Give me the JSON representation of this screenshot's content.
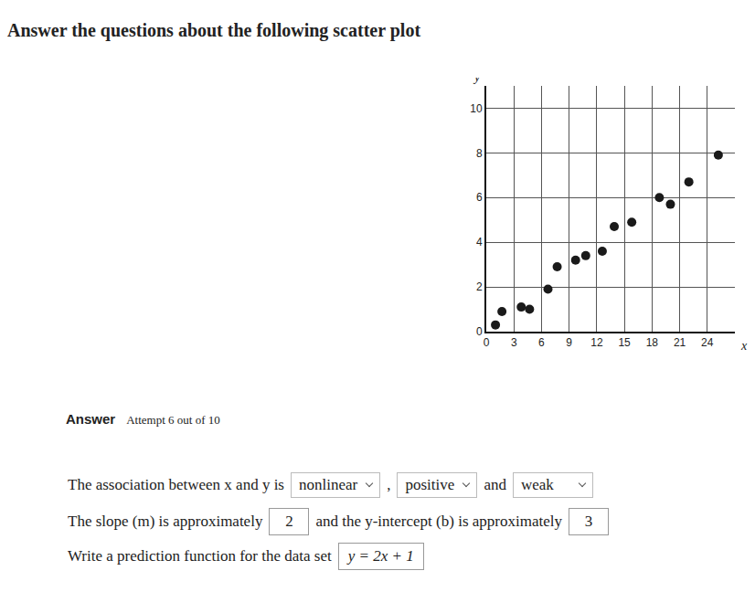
{
  "header": {
    "title": "Answer the questions about the following scatter plot"
  },
  "chart_data": {
    "type": "scatter",
    "xlabel": "x",
    "ylabel": "y",
    "x": [
      1,
      1.7,
      3.8,
      4.7,
      6.7,
      7.7,
      9.7,
      10.8,
      12.6,
      13.9,
      15.8,
      18.8,
      20.0,
      22.0,
      25.2
    ],
    "values": [
      0.3,
      0.9,
      1.1,
      1.0,
      1.9,
      2.9,
      3.2,
      3.4,
      3.6,
      4.7,
      4.9,
      6.0,
      5.7,
      6.7,
      7.9
    ],
    "color": "#1a1a1a",
    "marker": "circle",
    "xlim": [
      0,
      27
    ],
    "xticks": [
      0,
      3,
      6,
      9,
      12,
      15,
      18,
      21,
      24
    ],
    "ylim": [
      0,
      11
    ],
    "yticks": [
      0,
      2,
      4,
      6,
      8,
      10
    ],
    "grid": true
  },
  "answer": {
    "label": "Answer",
    "attempt": "Attempt 6 out of 10",
    "lines": [
      [
        {
          "text": "The association between x and y is"
        },
        {
          "select": "nonlinear"
        },
        {
          "text": ","
        },
        {
          "select": "positive"
        },
        {
          "text": "and"
        },
        {
          "select": "weak"
        }
      ],
      [
        {
          "text": "The slope (m) is approximately"
        },
        {
          "input": "2"
        },
        {
          "text": "and the y-intercept (b) is approximately"
        },
        {
          "input": "3"
        }
      ],
      [
        {
          "text": "Write a prediction function for the data set"
        },
        {
          "input": "y = 2x + 1"
        }
      ]
    ]
  }
}
